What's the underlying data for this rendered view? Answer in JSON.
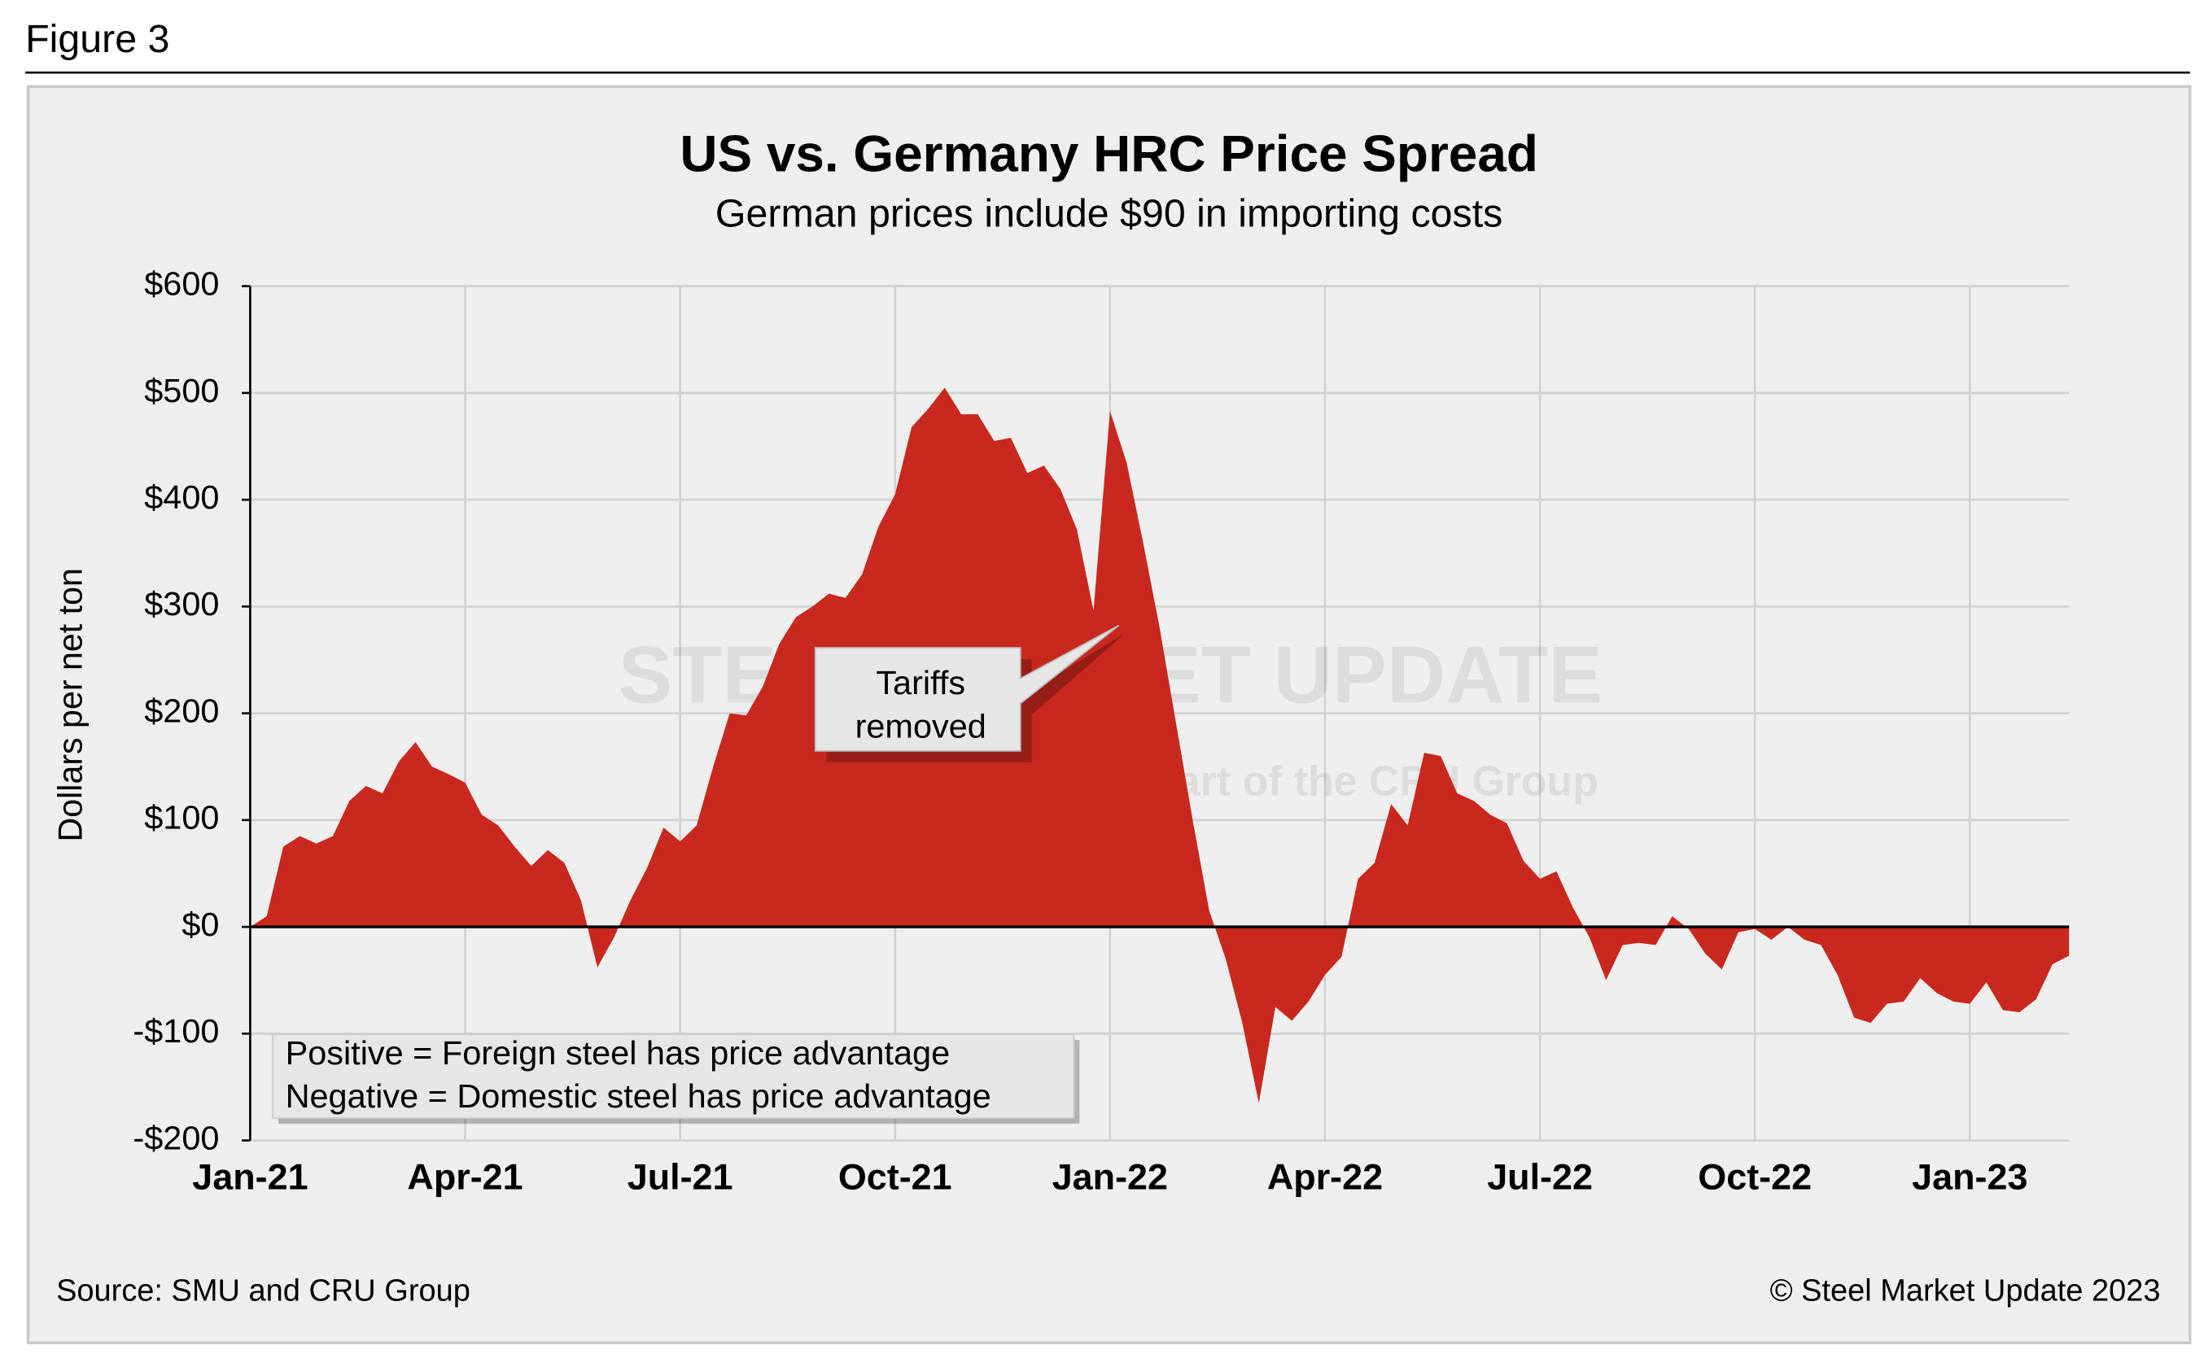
{
  "figure_label": "Figure 3",
  "chart_data": {
    "type": "area",
    "title": "US vs. Germany HRC Price Spread",
    "subtitle": "German prices include $90 in importing costs",
    "ylabel": "Dollars per net ton",
    "color": "#c8281e",
    "grid": true,
    "ylim": [
      -200,
      600
    ],
    "yticks": [
      {
        "value": 600,
        "label": "$600"
      },
      {
        "value": 500,
        "label": "$500"
      },
      {
        "value": 400,
        "label": "$400"
      },
      {
        "value": 300,
        "label": "$300"
      },
      {
        "value": 200,
        "label": "$200"
      },
      {
        "value": 100,
        "label": "$100"
      },
      {
        "value": 0,
        "label": "$0"
      },
      {
        "value": -100,
        "label": "-$100"
      },
      {
        "value": -200,
        "label": "-$200"
      }
    ],
    "categories": [
      "Jan-21",
      null,
      null,
      null,
      null,
      null,
      null,
      null,
      null,
      null,
      null,
      null,
      null,
      "Apr-21",
      null,
      null,
      null,
      null,
      null,
      null,
      null,
      null,
      null,
      null,
      null,
      null,
      "Jul-21",
      null,
      null,
      null,
      null,
      null,
      null,
      null,
      null,
      null,
      null,
      null,
      null,
      "Oct-21",
      null,
      null,
      null,
      null,
      null,
      null,
      null,
      null,
      null,
      null,
      null,
      null,
      "Jan-22",
      null,
      null,
      null,
      null,
      null,
      null,
      null,
      null,
      null,
      null,
      null,
      null,
      "Apr-22",
      null,
      null,
      null,
      null,
      null,
      null,
      null,
      null,
      null,
      null,
      null,
      null,
      "Jul-22",
      null,
      null,
      null,
      null,
      null,
      null,
      null,
      null,
      null,
      null,
      null,
      null,
      "Oct-22",
      null,
      null,
      null,
      null,
      null,
      null,
      null,
      null,
      null,
      null,
      null,
      null,
      "Jan-23",
      null,
      null,
      null,
      null,
      null,
      null
    ],
    "values": [
      0,
      10,
      75,
      85,
      78,
      85,
      118,
      132,
      125,
      155,
      173,
      150,
      143,
      135,
      105,
      95,
      75,
      57,
      72,
      60,
      25,
      -38,
      -10,
      25,
      55,
      93,
      80,
      95,
      150,
      200,
      198,
      225,
      265,
      290,
      300,
      312,
      308,
      330,
      375,
      405,
      468,
      485,
      505,
      480,
      480,
      455,
      458,
      425,
      432,
      410,
      372,
      296,
      483,
      435,
      360,
      280,
      190,
      100,
      15,
      -30,
      -90,
      -165,
      -75,
      -88,
      -70,
      -45,
      -28,
      45,
      60,
      115,
      95,
      163,
      160,
      125,
      118,
      105,
      97,
      62,
      45,
      52,
      18,
      -10,
      -50,
      -17,
      -15,
      -17,
      10,
      -2,
      -25,
      -40,
      -5,
      -2,
      -12,
      0,
      -12,
      -17,
      -45,
      -85,
      -90,
      -72,
      -70,
      -48,
      -62,
      -70,
      -72,
      -52,
      -78,
      -80,
      -68,
      -35,
      -27
    ],
    "annotation": [
      "Tariffs",
      "removed"
    ],
    "note": [
      "Positive = Foreign steel has price advantage",
      "Negative = Domestic steel has price advantage"
    ],
    "watermark": [
      "STEEL MARKET UPDATE",
      "part of the CRU Group"
    ]
  },
  "source": "Source: SMU and CRU Group",
  "copyright": "© Steel Market Update 2023"
}
